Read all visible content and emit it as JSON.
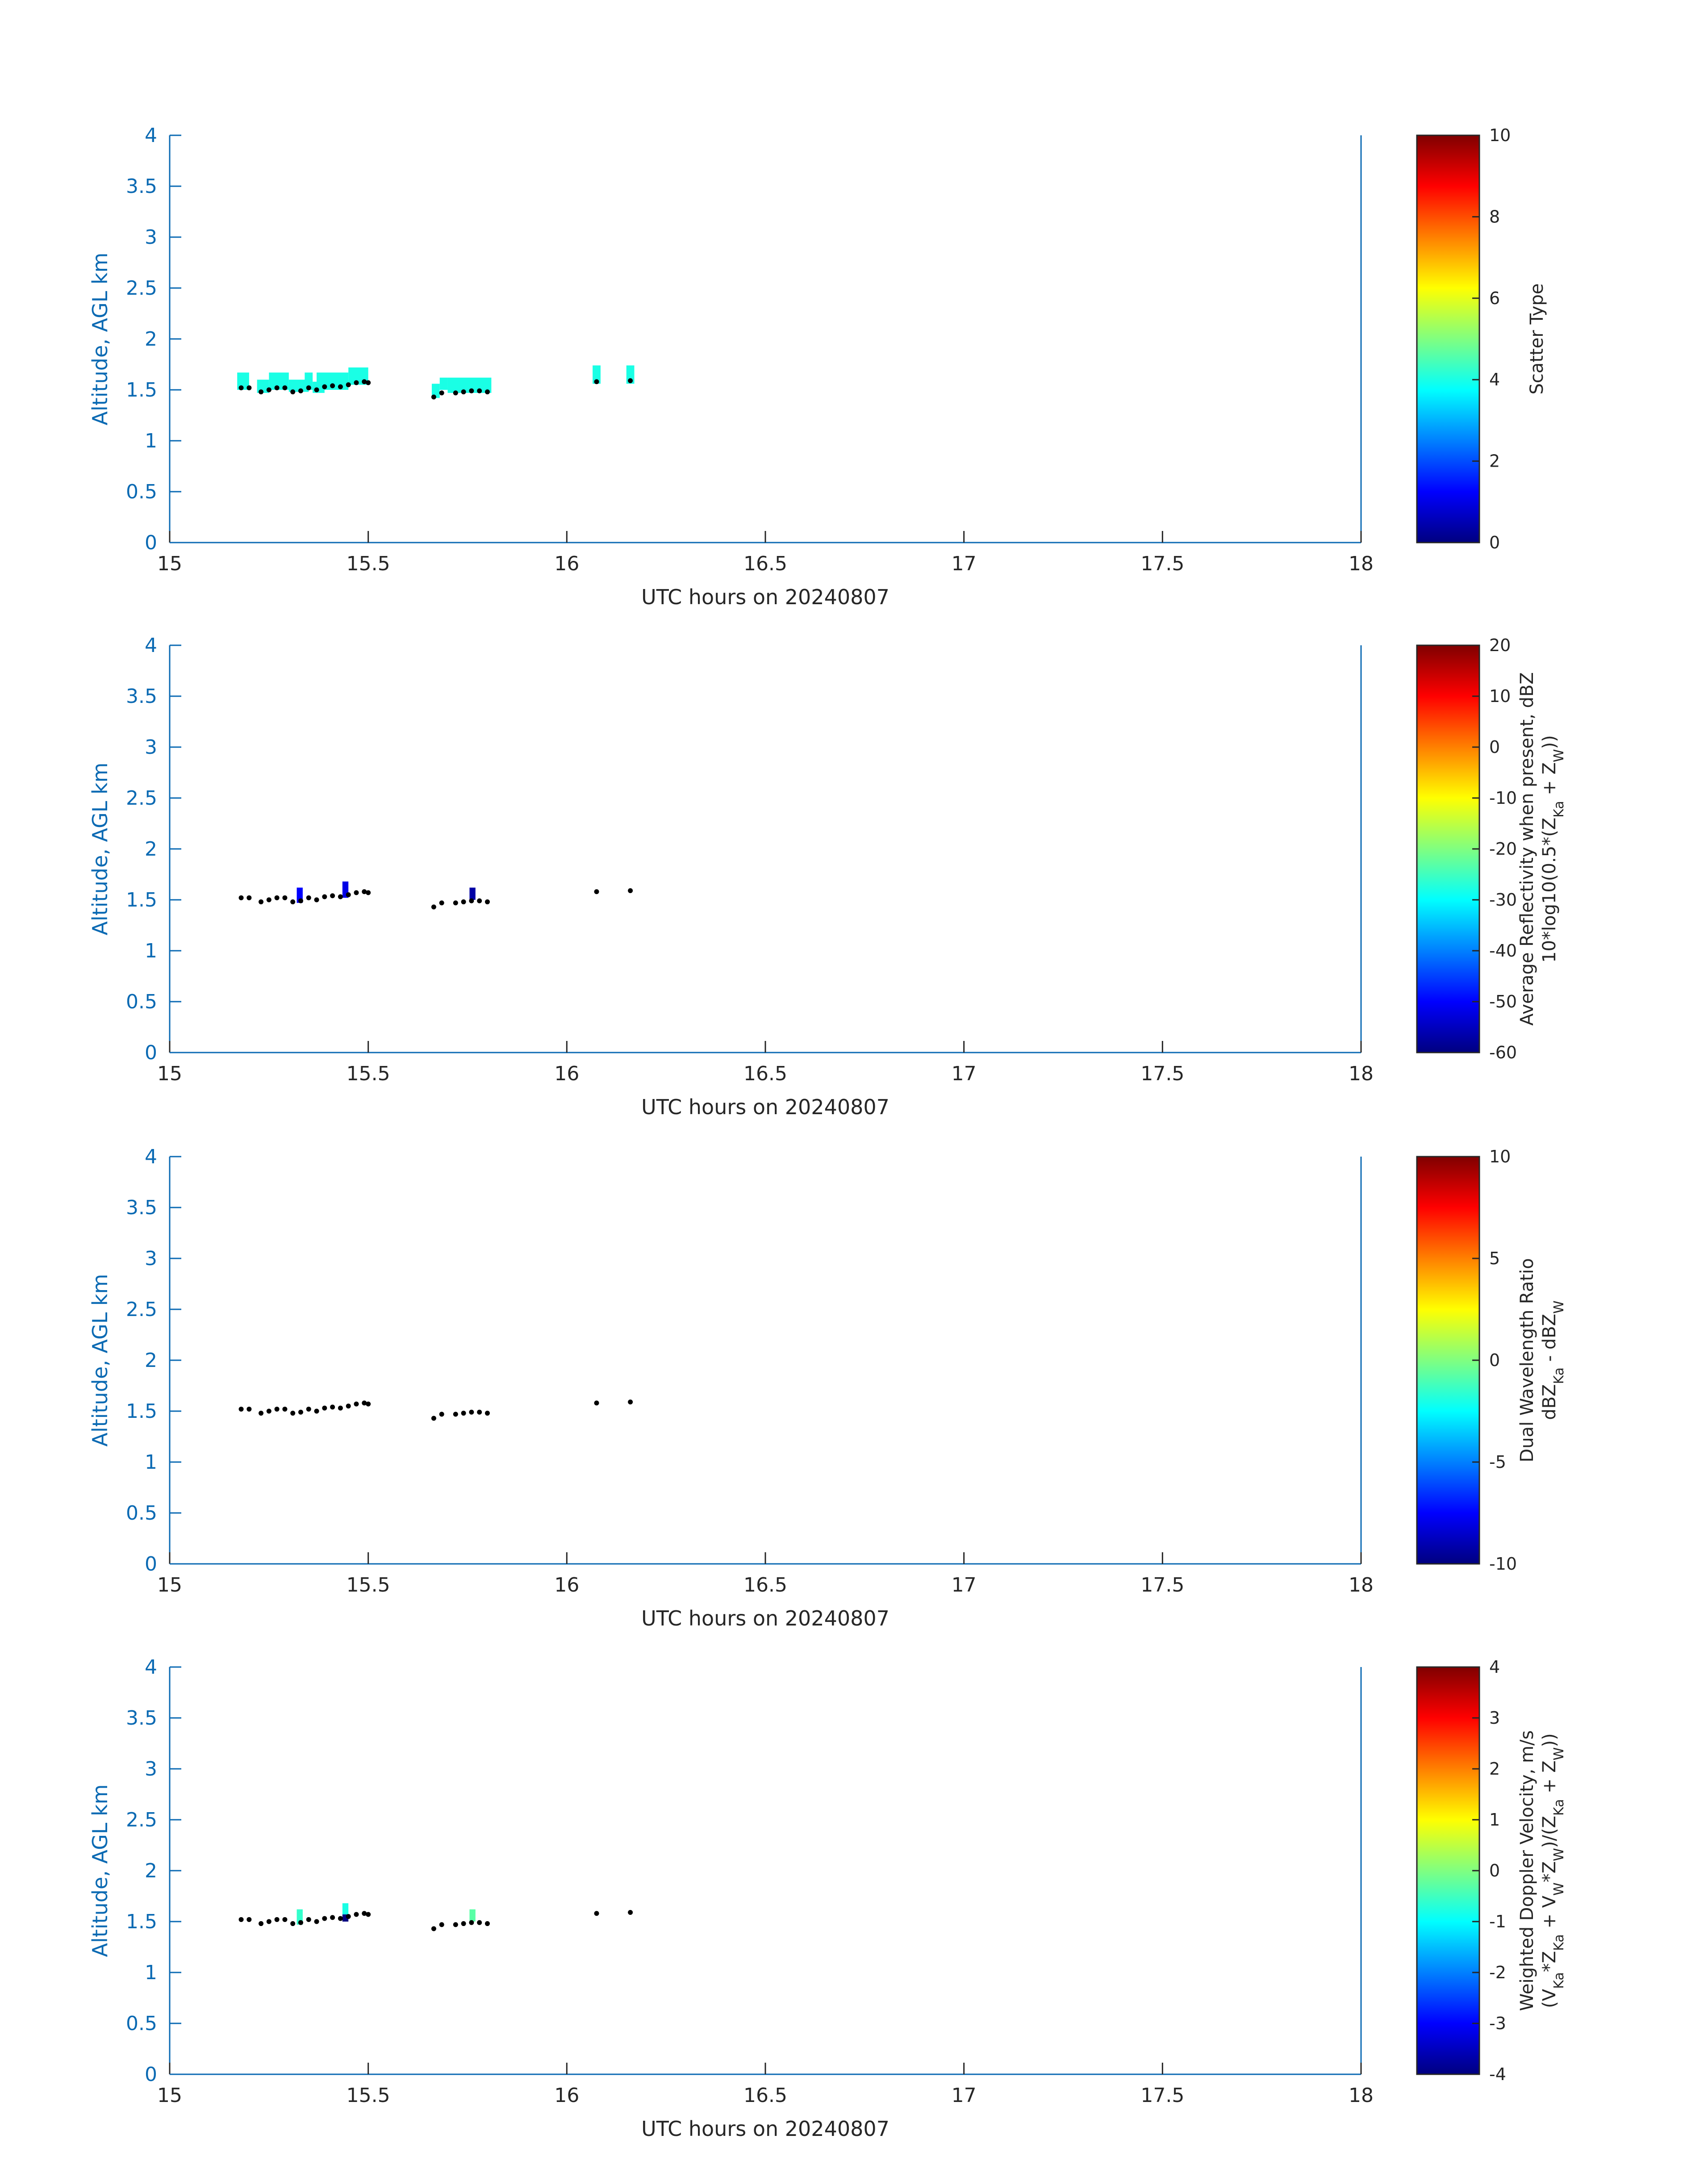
{
  "chart_data": [
    {
      "type": "heatmap",
      "xlabel": "UTC hours on 20240807",
      "ylabel": "Altitude, AGL km",
      "xlim": [
        15,
        18
      ],
      "ylim": [
        0,
        4
      ],
      "xticks": [
        "15",
        "15.5",
        "16",
        "16.5",
        "17",
        "17.5",
        "18"
      ],
      "yticks": [
        "0",
        "0.5",
        "1",
        "1.5",
        "2",
        "2.5",
        "3",
        "3.5",
        "4"
      ],
      "colorbar": {
        "label_lines": [
          "Scatter Type"
        ],
        "range": [
          0,
          10
        ],
        "ticks": [
          "0",
          "2",
          "4",
          "6",
          "8",
          "10"
        ],
        "colormap": "jet"
      },
      "cells": [
        {
          "t0": 15.17,
          "t1": 15.2,
          "z0": 1.5,
          "z1": 1.67,
          "v": 4
        },
        {
          "t0": 15.22,
          "t1": 15.25,
          "z0": 1.47,
          "z1": 1.6,
          "v": 4
        },
        {
          "t0": 15.25,
          "t1": 15.3,
          "z0": 1.5,
          "z1": 1.67,
          "v": 4
        },
        {
          "t0": 15.3,
          "t1": 15.35,
          "z0": 1.48,
          "z1": 1.6,
          "v": 4
        },
        {
          "t0": 15.34,
          "t1": 15.36,
          "z0": 1.5,
          "z1": 1.67,
          "v": 4
        },
        {
          "t0": 15.36,
          "t1": 15.39,
          "z0": 1.47,
          "z1": 1.58,
          "v": 4
        },
        {
          "t0": 15.37,
          "t1": 15.45,
          "z0": 1.5,
          "z1": 1.67,
          "v": 4
        },
        {
          "t0": 15.45,
          "t1": 15.5,
          "z0": 1.55,
          "z1": 1.72,
          "v": 4
        },
        {
          "t0": 15.66,
          "t1": 15.68,
          "z0": 1.42,
          "z1": 1.56,
          "v": 4
        },
        {
          "t0": 15.68,
          "t1": 15.7,
          "z0": 1.5,
          "z1": 1.62,
          "v": 4
        },
        {
          "t0": 15.7,
          "t1": 15.81,
          "z0": 1.47,
          "z1": 1.62,
          "v": 4
        },
        {
          "t0": 16.065,
          "t1": 16.085,
          "z0": 1.56,
          "z1": 1.74,
          "v": 4
        },
        {
          "t0": 16.15,
          "t1": 16.17,
          "z0": 1.56,
          "z1": 1.74,
          "v": 4
        }
      ],
      "base_points": [
        [
          15.18,
          1.52
        ],
        [
          15.2,
          1.52
        ],
        [
          15.23,
          1.48
        ],
        [
          15.25,
          1.5
        ],
        [
          15.27,
          1.52
        ],
        [
          15.29,
          1.52
        ],
        [
          15.31,
          1.48
        ],
        [
          15.33,
          1.49
        ],
        [
          15.35,
          1.52
        ],
        [
          15.37,
          1.5
        ],
        [
          15.39,
          1.53
        ],
        [
          15.41,
          1.54
        ],
        [
          15.43,
          1.53
        ],
        [
          15.45,
          1.55
        ],
        [
          15.47,
          1.57
        ],
        [
          15.49,
          1.58
        ],
        [
          15.5,
          1.57
        ],
        [
          15.665,
          1.43
        ],
        [
          15.685,
          1.47
        ],
        [
          15.72,
          1.47
        ],
        [
          15.74,
          1.48
        ],
        [
          15.76,
          1.49
        ],
        [
          15.78,
          1.49
        ],
        [
          15.8,
          1.48
        ],
        [
          16.075,
          1.58
        ],
        [
          16.16,
          1.59
        ]
      ]
    },
    {
      "type": "heatmap",
      "xlabel": "UTC hours on 20240807",
      "ylabel": "Altitude, AGL km",
      "xlim": [
        15,
        18
      ],
      "ylim": [
        0,
        4
      ],
      "xticks": [
        "15",
        "15.5",
        "16",
        "16.5",
        "17",
        "17.5",
        "18"
      ],
      "yticks": [
        "0",
        "0.5",
        "1",
        "1.5",
        "2",
        "2.5",
        "3",
        "3.5",
        "4"
      ],
      "colorbar": {
        "label_lines": [
          "Average Reflectivity when present, dBZ",
          "10*log10(0.5*(ZKa + ZW))"
        ],
        "range": [
          -60,
          20
        ],
        "ticks": [
          "-60",
          "-50",
          "-40",
          "-30",
          "-20",
          "-10",
          "0",
          "10",
          "20"
        ],
        "colormap": "jet"
      },
      "cells": [
        {
          "t0": 15.32,
          "t1": 15.335,
          "z0": 1.47,
          "z1": 1.62,
          "v": -50
        },
        {
          "t0": 15.435,
          "t1": 15.45,
          "z0": 1.52,
          "z1": 1.68,
          "v": -52
        },
        {
          "t0": 15.755,
          "t1": 15.77,
          "z0": 1.5,
          "z1": 1.62,
          "v": -57
        }
      ],
      "base_points": [
        [
          15.18,
          1.52
        ],
        [
          15.2,
          1.52
        ],
        [
          15.23,
          1.48
        ],
        [
          15.25,
          1.5
        ],
        [
          15.27,
          1.52
        ],
        [
          15.29,
          1.52
        ],
        [
          15.31,
          1.48
        ],
        [
          15.33,
          1.49
        ],
        [
          15.35,
          1.52
        ],
        [
          15.37,
          1.5
        ],
        [
          15.39,
          1.53
        ],
        [
          15.41,
          1.54
        ],
        [
          15.43,
          1.53
        ],
        [
          15.45,
          1.55
        ],
        [
          15.47,
          1.57
        ],
        [
          15.49,
          1.58
        ],
        [
          15.5,
          1.57
        ],
        [
          15.665,
          1.43
        ],
        [
          15.685,
          1.47
        ],
        [
          15.72,
          1.47
        ],
        [
          15.74,
          1.48
        ],
        [
          15.76,
          1.49
        ],
        [
          15.78,
          1.49
        ],
        [
          15.8,
          1.48
        ],
        [
          16.075,
          1.58
        ],
        [
          16.16,
          1.59
        ]
      ]
    },
    {
      "type": "heatmap",
      "xlabel": "UTC hours on 20240807",
      "ylabel": "Altitude, AGL km",
      "xlim": [
        15,
        18
      ],
      "ylim": [
        0,
        4
      ],
      "xticks": [
        "15",
        "15.5",
        "16",
        "16.5",
        "17",
        "17.5",
        "18"
      ],
      "yticks": [
        "0",
        "0.5",
        "1",
        "1.5",
        "2",
        "2.5",
        "3",
        "3.5",
        "4"
      ],
      "colorbar": {
        "label_lines": [
          "Dual Wavelength Ratio",
          "dBZKa - dBZW"
        ],
        "range": [
          -10,
          10
        ],
        "ticks": [
          "-10",
          "-5",
          "0",
          "5",
          "10"
        ],
        "colormap": "jet"
      },
      "cells": [],
      "base_points": [
        [
          15.18,
          1.52
        ],
        [
          15.2,
          1.52
        ],
        [
          15.23,
          1.48
        ],
        [
          15.25,
          1.5
        ],
        [
          15.27,
          1.52
        ],
        [
          15.29,
          1.52
        ],
        [
          15.31,
          1.48
        ],
        [
          15.33,
          1.49
        ],
        [
          15.35,
          1.52
        ],
        [
          15.37,
          1.5
        ],
        [
          15.39,
          1.53
        ],
        [
          15.41,
          1.54
        ],
        [
          15.43,
          1.53
        ],
        [
          15.45,
          1.55
        ],
        [
          15.47,
          1.57
        ],
        [
          15.49,
          1.58
        ],
        [
          15.5,
          1.57
        ],
        [
          15.665,
          1.43
        ],
        [
          15.685,
          1.47
        ],
        [
          15.72,
          1.47
        ],
        [
          15.74,
          1.48
        ],
        [
          15.76,
          1.49
        ],
        [
          15.78,
          1.49
        ],
        [
          15.8,
          1.48
        ],
        [
          16.075,
          1.58
        ],
        [
          16.16,
          1.59
        ]
      ]
    },
    {
      "type": "heatmap",
      "xlabel": "UTC hours on 20240807",
      "ylabel": "Altitude, AGL km",
      "xlim": [
        15,
        18
      ],
      "ylim": [
        0,
        4
      ],
      "xticks": [
        "15",
        "15.5",
        "16",
        "16.5",
        "17",
        "17.5",
        "18"
      ],
      "yticks": [
        "0",
        "0.5",
        "1",
        "1.5",
        "2",
        "2.5",
        "3",
        "3.5",
        "4"
      ],
      "colorbar": {
        "label_lines": [
          "Weighted Doppler Velocity, m/s",
          "(VKa*ZKa + VW*ZW)/(ZKa + ZW))"
        ],
        "range": [
          -4,
          4
        ],
        "ticks": [
          "-4",
          "-3",
          "-2",
          "-1",
          "0",
          "1",
          "2",
          "3",
          "4"
        ],
        "colormap": "jet"
      },
      "cells": [
        {
          "t0": 15.32,
          "t1": 15.335,
          "z0": 1.47,
          "z1": 1.62,
          "v": -0.6
        },
        {
          "t0": 15.435,
          "t1": 15.45,
          "z0": 1.57,
          "z1": 1.68,
          "v": -0.8
        },
        {
          "t0": 15.435,
          "t1": 15.45,
          "z0": 1.5,
          "z1": 1.57,
          "v": -4
        },
        {
          "t0": 15.755,
          "t1": 15.77,
          "z0": 1.5,
          "z1": 1.62,
          "v": -0.3
        }
      ],
      "base_points": [
        [
          15.18,
          1.52
        ],
        [
          15.2,
          1.52
        ],
        [
          15.23,
          1.48
        ],
        [
          15.25,
          1.5
        ],
        [
          15.27,
          1.52
        ],
        [
          15.29,
          1.52
        ],
        [
          15.31,
          1.48
        ],
        [
          15.33,
          1.49
        ],
        [
          15.35,
          1.52
        ],
        [
          15.37,
          1.5
        ],
        [
          15.39,
          1.53
        ],
        [
          15.41,
          1.54
        ],
        [
          15.43,
          1.53
        ],
        [
          15.45,
          1.55
        ],
        [
          15.47,
          1.57
        ],
        [
          15.49,
          1.58
        ],
        [
          15.5,
          1.57
        ],
        [
          15.665,
          1.43
        ],
        [
          15.685,
          1.47
        ],
        [
          15.72,
          1.47
        ],
        [
          15.74,
          1.48
        ],
        [
          15.76,
          1.49
        ],
        [
          15.78,
          1.49
        ],
        [
          15.8,
          1.48
        ],
        [
          16.075,
          1.58
        ],
        [
          16.16,
          1.59
        ]
      ]
    }
  ]
}
